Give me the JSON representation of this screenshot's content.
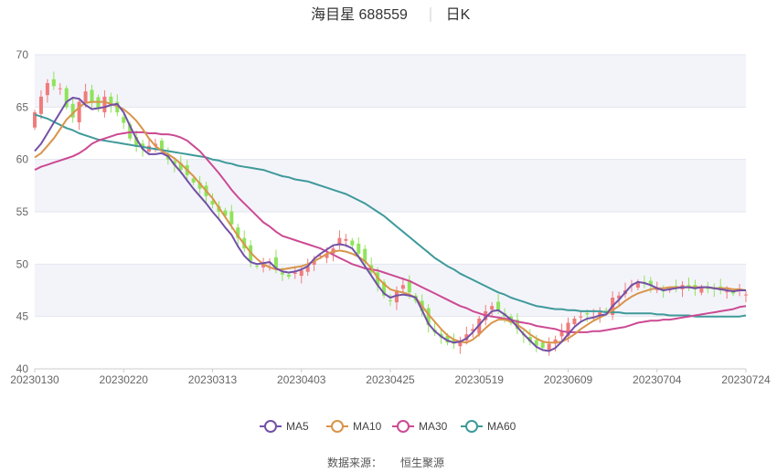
{
  "title": {
    "name": "海目星 688559",
    "period": "日K"
  },
  "source": {
    "label": "数据来源：",
    "provider": "恒生聚源"
  },
  "colors": {
    "up": "#f07b7b",
    "down": "#8fe35b",
    "ma5": "#7351a6",
    "ma10": "#d9944a",
    "ma30": "#cc4a93",
    "ma60": "#3f9a9a",
    "band": "#f3f4fa",
    "grid": "#e3e6ef"
  },
  "chart_data": {
    "type": "candlestick",
    "ylim": [
      40,
      70
    ],
    "yticks": [
      40,
      45,
      50,
      55,
      60,
      65,
      70
    ],
    "grid": "horizontal",
    "x_tick_labels": [
      "20230130",
      "20230220",
      "20230313",
      "20230403",
      "20230425",
      "20230519",
      "20230609",
      "20230704",
      "20230724"
    ],
    "x_tick_positions": [
      0,
      14,
      28,
      42,
      56,
      70,
      84,
      98,
      112
    ],
    "n_days": 113,
    "legend": [
      "MA5",
      "MA10",
      "MA30",
      "MA60"
    ],
    "legend_position": "bottom",
    "close": [
      64.5,
      66.0,
      67.3,
      67.0,
      66.8,
      65.0,
      64.0,
      65.5,
      66.5,
      65.5,
      64.8,
      66.0,
      65.2,
      64.5,
      63.5,
      62.0,
      61.2,
      61.0,
      61.3,
      61.5,
      61.0,
      60.0,
      59.5,
      59.0,
      58.5,
      57.8,
      57.2,
      56.5,
      55.7,
      55.0,
      54.6,
      53.8,
      52.5,
      51.5,
      50.3,
      49.8,
      50.0,
      50.2,
      49.5,
      49.0,
      48.8,
      49.2,
      49.4,
      49.8,
      50.3,
      50.8,
      51.0,
      51.5,
      52.5,
      52.4,
      51.8,
      51.0,
      50.2,
      49.2,
      48.0,
      47.0,
      46.5,
      47.5,
      48.0,
      47.3,
      46.5,
      45.5,
      44.2,
      43.5,
      43.0,
      42.5,
      42.4,
      42.7,
      43.3,
      43.8,
      44.8,
      45.5,
      46.0,
      45.6,
      45.0,
      44.4,
      43.8,
      43.2,
      42.6,
      42.2,
      42.0,
      42.4,
      42.8,
      43.6,
      44.4,
      44.8,
      45.0,
      45.2,
      45.0,
      45.4,
      45.6,
      46.8,
      47.0,
      47.5,
      48.0,
      48.3,
      48.2,
      48.0,
      47.6,
      47.4,
      47.6,
      47.8,
      48.0,
      47.8,
      47.6,
      47.8,
      47.7,
      47.6,
      47.5,
      47.4,
      47.2,
      47.5,
      47.1
    ],
    "ma5": [
      60.8,
      61.5,
      62.5,
      63.5,
      64.5,
      65.5,
      65.9,
      65.8,
      65.2,
      64.8,
      64.9,
      65.0,
      65.2,
      65.3,
      64.5,
      63.2,
      62.0,
      61.0,
      60.5,
      60.5,
      60.6,
      60.3,
      59.5,
      58.8,
      58.0,
      57.2,
      56.5,
      55.8,
      55.0,
      54.3,
      53.5,
      52.8,
      51.7,
      50.8,
      50.2,
      50.0,
      50.1,
      50.2,
      49.6,
      49.3,
      49.2,
      49.3,
      49.5,
      49.8,
      50.5,
      51.0,
      51.4,
      51.8,
      51.9,
      51.8,
      51.5,
      50.7,
      49.8,
      48.9,
      48.0,
      47.2,
      46.8,
      47.0,
      47.1,
      47.0,
      46.8,
      45.6,
      44.3,
      43.6,
      43.1,
      42.7,
      42.5,
      42.6,
      42.9,
      43.5,
      44.2,
      44.9,
      45.5,
      45.6,
      45.2,
      44.7,
      44.0,
      43.3,
      42.7,
      42.1,
      41.8,
      41.7,
      42.0,
      42.6,
      43.3,
      44.0,
      44.5,
      44.8,
      44.9,
      45.1,
      45.2,
      46.0,
      46.6,
      47.3,
      48.0,
      48.3,
      48.2,
      48.0,
      47.7,
      47.5,
      47.6,
      47.7,
      47.8,
      47.8,
      47.7,
      47.8,
      47.8,
      47.7,
      47.6,
      47.5,
      47.4,
      47.5,
      47.5
    ],
    "ma10": [
      60.2,
      60.6,
      61.3,
      62.0,
      62.9,
      63.8,
      64.4,
      65.0,
      65.4,
      65.5,
      65.5,
      65.5,
      65.3,
      65.1,
      64.8,
      64.3,
      63.7,
      62.9,
      62.0,
      61.3,
      60.8,
      60.5,
      60.1,
      59.6,
      59.0,
      58.4,
      57.7,
      57.0,
      56.3,
      55.4,
      54.5,
      53.6,
      52.7,
      51.9,
      51.1,
      50.5,
      50.0,
      49.7,
      49.5,
      49.5,
      49.6,
      49.7,
      49.8,
      50.0,
      50.3,
      50.6,
      51.0,
      51.2,
      51.3,
      51.2,
      51.0,
      50.7,
      50.3,
      49.6,
      48.7,
      48.1,
      47.6,
      47.4,
      47.3,
      47.1,
      46.8,
      46.0,
      45.2,
      44.5,
      43.8,
      43.2,
      42.8,
      42.6,
      42.5,
      42.8,
      43.3,
      43.9,
      44.4,
      44.7,
      44.7,
      44.5,
      44.2,
      43.8,
      43.3,
      42.9,
      42.6,
      42.5,
      42.5,
      42.6,
      42.9,
      43.3,
      43.8,
      44.2,
      44.6,
      44.9,
      45.2,
      45.6,
      46.0,
      46.5,
      46.9,
      47.2,
      47.4,
      47.6,
      47.7,
      47.7,
      47.8,
      47.8,
      47.8,
      47.8,
      47.8,
      47.8,
      47.8,
      47.7,
      47.7,
      47.7,
      47.6,
      47.6,
      47.5
    ],
    "ma30": [
      59.0,
      59.3,
      59.5,
      59.7,
      59.9,
      60.1,
      60.3,
      60.6,
      61.0,
      61.5,
      61.8,
      62.0,
      62.2,
      62.4,
      62.5,
      62.6,
      62.6,
      62.6,
      62.5,
      62.5,
      62.4,
      62.4,
      62.3,
      62.1,
      61.8,
      61.3,
      60.8,
      60.1,
      59.4,
      58.7,
      57.9,
      57.1,
      56.4,
      55.8,
      55.2,
      54.6,
      54.0,
      53.6,
      53.1,
      52.7,
      52.5,
      52.3,
      52.1,
      51.9,
      51.7,
      51.5,
      51.2,
      50.9,
      50.6,
      50.3,
      50.0,
      49.8,
      49.6,
      49.5,
      49.4,
      49.2,
      49.0,
      48.8,
      48.6,
      48.4,
      48.1,
      47.8,
      47.5,
      47.2,
      46.9,
      46.6,
      46.3,
      46.0,
      45.8,
      45.5,
      45.3,
      45.1,
      45.0,
      44.9,
      44.8,
      44.7,
      44.5,
      44.4,
      44.3,
      44.1,
      44.0,
      43.9,
      43.8,
      43.6,
      43.5,
      43.5,
      43.5,
      43.5,
      43.6,
      43.6,
      43.7,
      43.8,
      43.9,
      44.0,
      44.2,
      44.4,
      44.5,
      44.6,
      44.6,
      44.7,
      44.7,
      44.8,
      44.9,
      45.0,
      45.1,
      45.2,
      45.3,
      45.4,
      45.5,
      45.6,
      45.7,
      45.9,
      46.0
    ],
    "ma60": [
      64.3,
      64.1,
      63.9,
      63.6,
      63.3,
      63.0,
      62.8,
      62.5,
      62.3,
      62.1,
      61.9,
      61.8,
      61.7,
      61.6,
      61.5,
      61.4,
      61.3,
      61.2,
      61.1,
      61.0,
      60.9,
      60.8,
      60.7,
      60.6,
      60.5,
      60.4,
      60.3,
      60.2,
      60.0,
      59.9,
      59.7,
      59.6,
      59.4,
      59.3,
      59.2,
      59.1,
      59.0,
      58.8,
      58.6,
      58.4,
      58.3,
      58.1,
      58.0,
      57.9,
      57.7,
      57.5,
      57.3,
      57.1,
      56.9,
      56.7,
      56.4,
      56.1,
      55.8,
      55.4,
      55.0,
      54.6,
      54.1,
      53.6,
      53.1,
      52.6,
      52.1,
      51.6,
      51.1,
      50.6,
      50.2,
      49.8,
      49.5,
      49.1,
      48.8,
      48.5,
      48.2,
      47.9,
      47.6,
      47.3,
      47.1,
      46.8,
      46.6,
      46.4,
      46.2,
      46.0,
      45.9,
      45.8,
      45.7,
      45.7,
      45.6,
      45.6,
      45.5,
      45.5,
      45.5,
      45.5,
      45.4,
      45.4,
      45.4,
      45.3,
      45.3,
      45.3,
      45.3,
      45.3,
      45.2,
      45.2,
      45.1,
      45.1,
      45.1,
      45.1,
      45.0,
      45.0,
      45.0,
      45.0,
      45.0,
      45.0,
      45.0,
      45.0,
      45.1
    ]
  }
}
